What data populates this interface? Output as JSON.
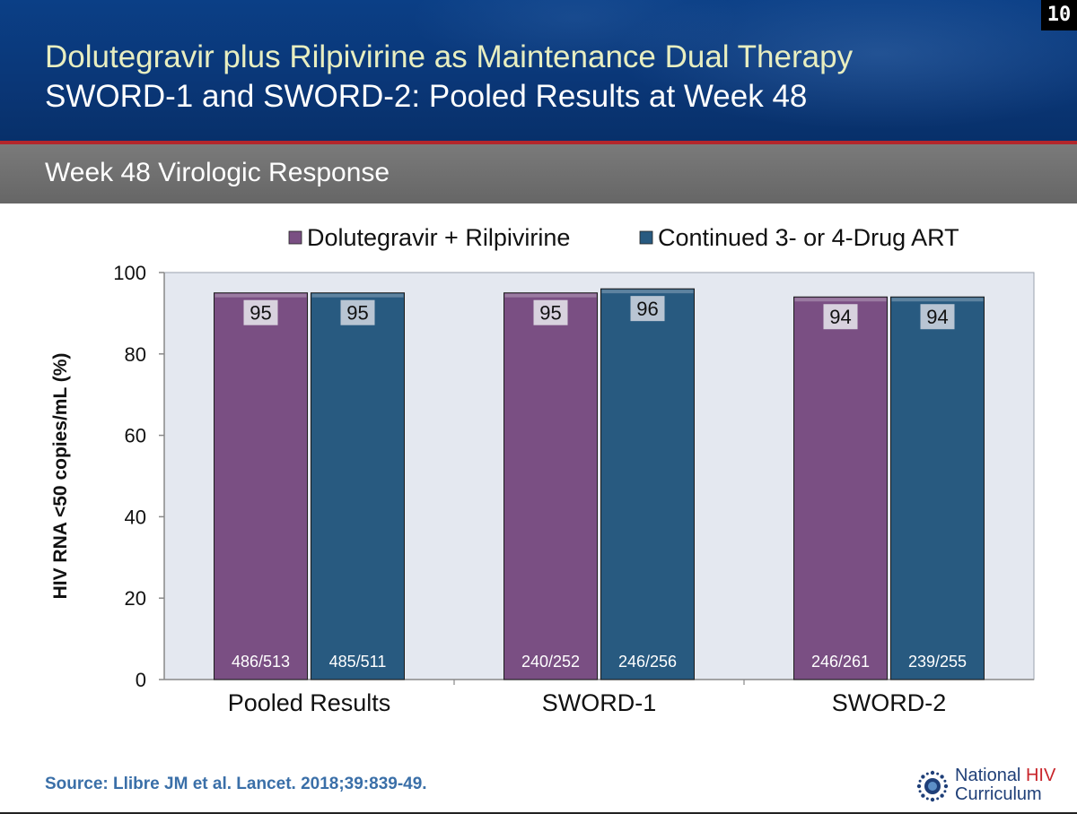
{
  "slide": {
    "number": "10",
    "title_line1": "Dolutegravir plus Rilpivirine as Maintenance Dual Therapy",
    "title_line2": "SWORD-1 and SWORD-2: Pooled Results at Week 48",
    "subtitle": "Week 48 Virologic Response",
    "source": "Source: Llibre JM et al. Lancet. 2018;39:839-49.",
    "logo": {
      "word1": "National ",
      "word2": "HIV",
      "word3": "Curriculum",
      "icon": "starburst-logo-icon"
    }
  },
  "colors": {
    "header_blue": "#0a3778",
    "accent_red": "#b3262b",
    "subbar_gray": "#707070",
    "plot_bg": "#e4e8f0",
    "series_purple": "#7a4f83",
    "series_blue": "#285a80"
  },
  "chart_data": {
    "type": "bar",
    "title": "",
    "xlabel": "",
    "ylabel": "HIV RNA <50 copies/mL (%)",
    "ylim": [
      0,
      100
    ],
    "yticks": [
      0,
      20,
      40,
      60,
      80,
      100
    ],
    "categories": [
      "Pooled Results",
      "SWORD-1",
      "SWORD-2"
    ],
    "legend_position": "top",
    "grid": false,
    "series": [
      {
        "name": "Dolutegravir + Rilpivirine",
        "color": "#7a4f83",
        "values": [
          95,
          95,
          94
        ],
        "labels": [
          "95",
          "95",
          "94"
        ],
        "counts": [
          "486/513",
          "240/252",
          "246/261"
        ]
      },
      {
        "name": "Continued 3- or 4-Drug ART",
        "color": "#285a80",
        "values": [
          95,
          96,
          94
        ],
        "labels": [
          "95",
          "96",
          "94"
        ],
        "counts": [
          "485/511",
          "246/256",
          "239/255"
        ]
      }
    ]
  }
}
